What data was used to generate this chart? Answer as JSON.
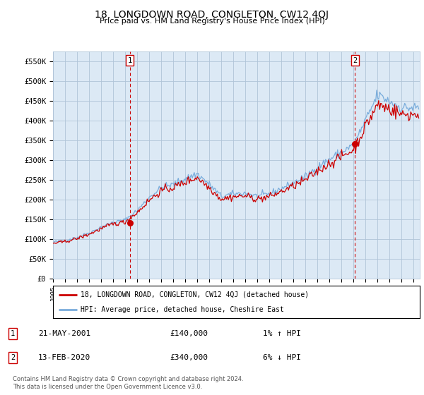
{
  "title": "18, LONGDOWN ROAD, CONGLETON, CW12 4QJ",
  "subtitle": "Price paid vs. HM Land Registry's House Price Index (HPI)",
  "ylabel_ticks": [
    "£0",
    "£50K",
    "£100K",
    "£150K",
    "£200K",
    "£250K",
    "£300K",
    "£350K",
    "£400K",
    "£450K",
    "£500K",
    "£550K"
  ],
  "ytick_values": [
    0,
    50000,
    100000,
    150000,
    200000,
    250000,
    300000,
    350000,
    400000,
    450000,
    500000,
    550000
  ],
  "ylim": [
    0,
    575000
  ],
  "xlim_start": 1995.0,
  "xlim_end": 2025.5,
  "xtick_years": [
    1995,
    1996,
    1997,
    1998,
    1999,
    2000,
    2001,
    2002,
    2003,
    2004,
    2005,
    2006,
    2007,
    2008,
    2009,
    2010,
    2011,
    2012,
    2013,
    2014,
    2015,
    2016,
    2017,
    2018,
    2019,
    2020,
    2021,
    2022,
    2023,
    2024,
    2025
  ],
  "legend_label_red": "18, LONGDOWN ROAD, CONGLETON, CW12 4QJ (detached house)",
  "legend_label_blue": "HPI: Average price, detached house, Cheshire East",
  "transaction1_date": "21-MAY-2001",
  "transaction1_price": "£140,000",
  "transaction1_hpi": "1% ↑ HPI",
  "transaction1_x": 2001.38,
  "transaction1_y": 140000,
  "transaction2_date": "13-FEB-2020",
  "transaction2_price": "£340,000",
  "transaction2_hpi": "6% ↓ HPI",
  "transaction2_x": 2020.12,
  "transaction2_y": 340000,
  "footer": "Contains HM Land Registry data © Crown copyright and database right 2024.\nThis data is licensed under the Open Government Licence v3.0.",
  "bg_color": "#ffffff",
  "plot_bg_color": "#dce9f5",
  "grid_color": "#b0c4d8",
  "red_color": "#cc0000",
  "blue_color": "#7aaddc",
  "hpi_annual": [
    92000,
    96000,
    104000,
    115000,
    130000,
    142000,
    148000,
    172000,
    205000,
    230000,
    238000,
    253000,
    265000,
    238000,
    208000,
    214000,
    216000,
    208000,
    214000,
    228000,
    242000,
    258000,
    282000,
    302000,
    320000,
    338000,
    400000,
    465000,
    448000,
    432000,
    432000
  ],
  "red_annual": [
    89000,
    93000,
    101000,
    112000,
    126000,
    138000,
    143000,
    167000,
    198000,
    222000,
    230000,
    244000,
    256000,
    230000,
    201000,
    207000,
    209000,
    201000,
    207000,
    220000,
    234000,
    249000,
    272000,
    291000,
    309000,
    326000,
    386000,
    440000,
    430000,
    415000,
    415000
  ]
}
